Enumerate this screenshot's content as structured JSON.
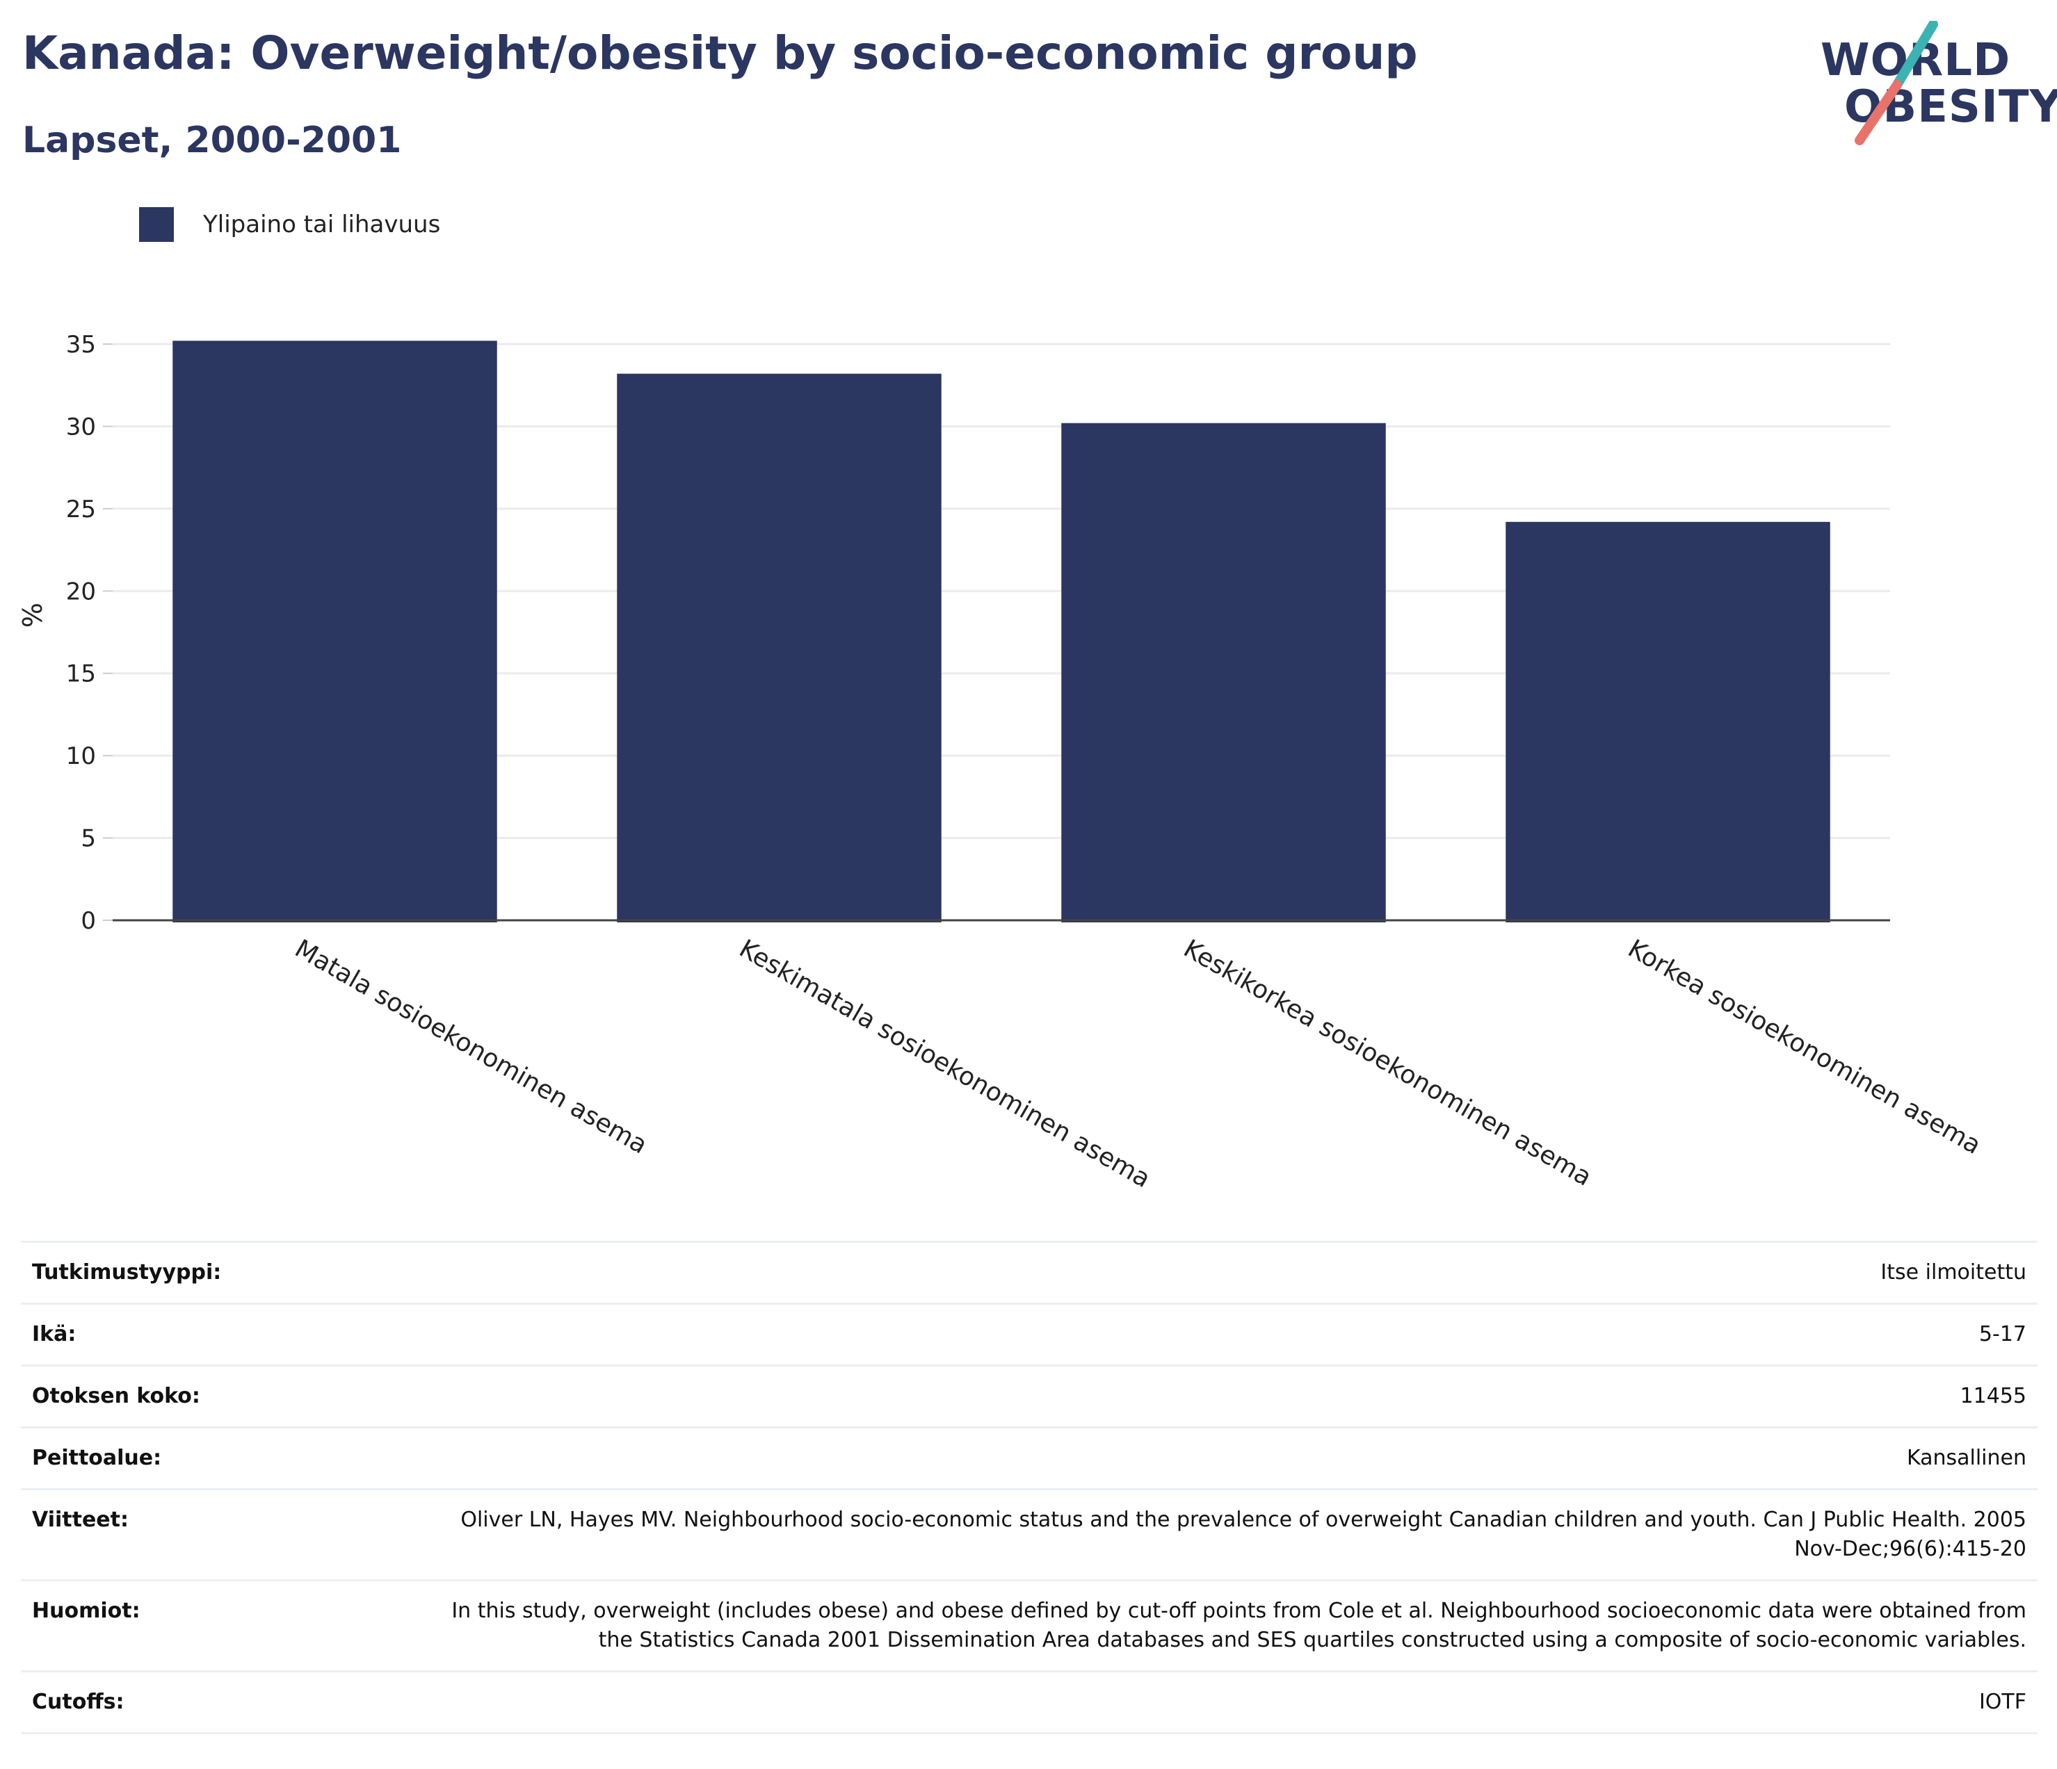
{
  "header": {
    "title": "Kanada: Overweight/obesity by socio-economic group",
    "subtitle": "Lapset, 2000-2001"
  },
  "logo": {
    "line1": "WORLD",
    "line2": "OBESITY",
    "accent_teal": "#3bb3b3",
    "accent_coral": "#e8736a"
  },
  "colors": {
    "bar": "#2b3661",
    "text": "#2b3661"
  },
  "chart_data": {
    "type": "bar",
    "categories": [
      "Matala sosioekonominen asema",
      "Keskimatala sosioekonominen asema",
      "Keskikorkea sosioekonominen asema",
      "Korkea sosioekonominen asema"
    ],
    "series": [
      {
        "name": "Ylipaino tai lihavuus",
        "values": [
          35.2,
          33.2,
          30.2,
          24.2
        ]
      }
    ],
    "ylabel": "%",
    "ylim": [
      0,
      35
    ],
    "yticks": [
      0,
      5,
      10,
      15,
      20,
      25,
      30,
      35
    ],
    "grid": true,
    "legend": "top-left"
  },
  "info": [
    {
      "key": "Tutkimustyyppi:",
      "value": "Itse ilmoitettu"
    },
    {
      "key": "Ikä:",
      "value": "5-17"
    },
    {
      "key": "Otoksen koko:",
      "value": "11455"
    },
    {
      "key": "Peittoalue:",
      "value": "Kansallinen"
    },
    {
      "key": "Viitteet:",
      "value": "Oliver LN, Hayes MV. Neighbourhood socio-economic status and the prevalence of overweight Canadian children and youth. Can J Public Health. 2005 Nov-Dec;96(6):415-20"
    },
    {
      "key": "Huomiot:",
      "value": "In this study, overweight (includes obese) and obese defined by cut-off points from Cole et al. Neighbourhood socioeconomic data were obtained from the Statistics Canada 2001 Dissemination Area databases and SES quartiles constructed using a composite of socio-economic variables."
    },
    {
      "key": "Cutoffs:",
      "value": "IOTF"
    }
  ]
}
